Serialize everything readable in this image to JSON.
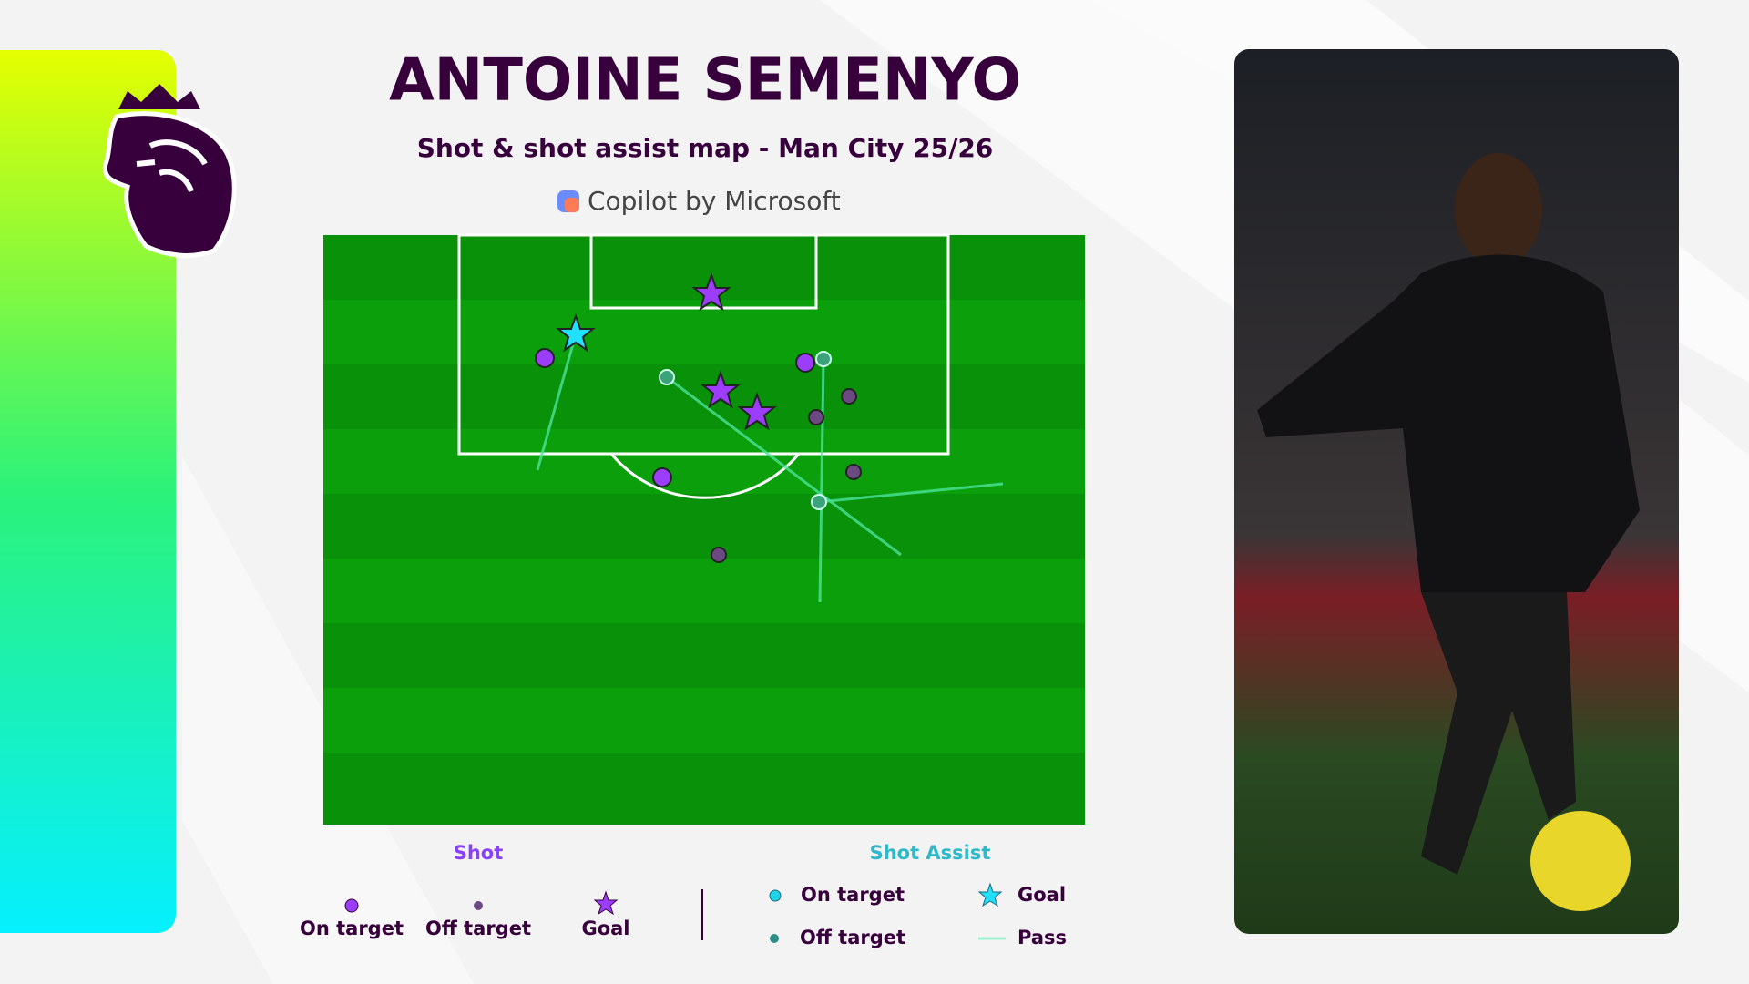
{
  "header": {
    "title": "ANTOINE SEMENYO",
    "subtitle": "Shot & shot assist map - Man City 25/26",
    "sponsor": "Copilot by Microsoft"
  },
  "legend": {
    "shot": {
      "title": "Shot",
      "items": [
        "On target",
        "Off target",
        "Goal"
      ]
    },
    "assist": {
      "title": "Shot Assist",
      "items": [
        "On target",
        "Goal",
        "Off target",
        "Pass"
      ]
    }
  }
}
